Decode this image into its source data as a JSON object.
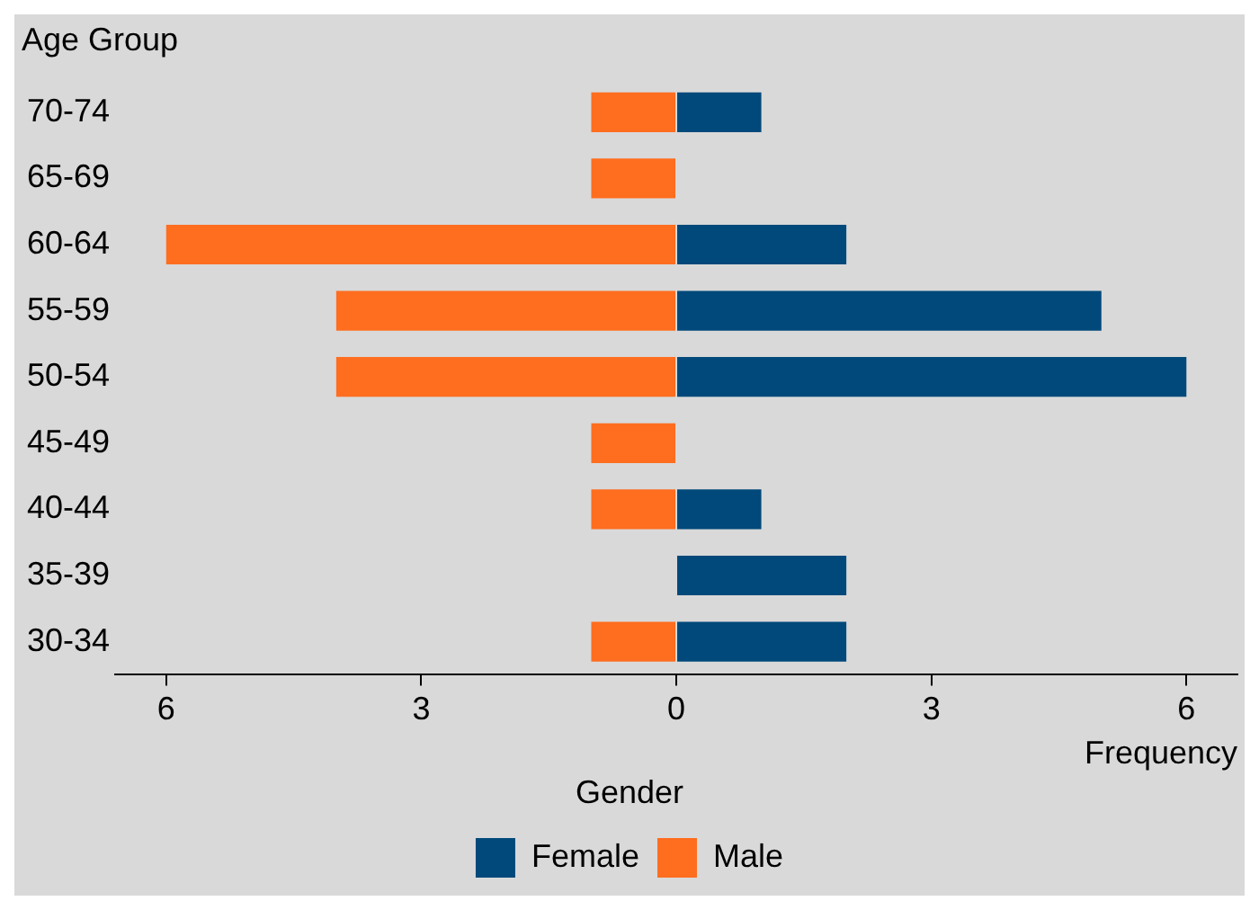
{
  "chart_data": {
    "type": "bar",
    "orientation": "horizontal",
    "stacked": true,
    "xlabel": "Frequency",
    "ylabel": "Age Group",
    "legend_title": "Gender",
    "legend": "bottom",
    "grid": false,
    "categories": [
      "70-74",
      "65-69",
      "60-64",
      "55-59",
      "50-54",
      "45-49",
      "40-44",
      "35-39",
      "30-34"
    ],
    "series": [
      {
        "name": "Female",
        "color": "#00497a",
        "values": [
          1,
          0,
          2,
          5,
          6,
          0,
          1,
          2,
          2
        ]
      },
      {
        "name": "Male",
        "color": "#ff6d1f",
        "values": [
          -1,
          -1,
          -6,
          -4,
          -4,
          -1,
          -1,
          0,
          -1
        ]
      }
    ],
    "xlim": [
      -6.6,
      6.6
    ],
    "xticks": [
      {
        "value": -6,
        "label": "6"
      },
      {
        "value": -3,
        "label": "3"
      },
      0,
      3,
      {
        "value": 6,
        "label": "6"
      }
    ]
  }
}
